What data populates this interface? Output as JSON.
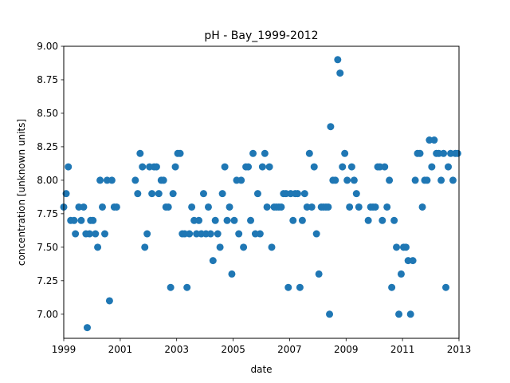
{
  "chart_data": {
    "type": "scatter",
    "title": "pH - Bay_1999-2012",
    "xlabel": "date",
    "ylabel": "concentration [unknown units]",
    "xlim": [
      "1999-01-01",
      "2013-01-01"
    ],
    "ylim": [
      6.82,
      9.0
    ],
    "x_ticks": [
      "1999",
      "2001",
      "2003",
      "2005",
      "2007",
      "2009",
      "2011",
      "2013"
    ],
    "y_ticks": [
      "7.00",
      "7.25",
      "7.50",
      "7.75",
      "8.00",
      "8.25",
      "8.50",
      "8.75",
      "9.00"
    ],
    "grid": false,
    "marker_color": "#1f77b4",
    "points": [
      [
        "1999-01-01",
        7.8
      ],
      [
        "1999-02-01",
        7.9
      ],
      [
        "1999-03-01",
        8.1
      ],
      [
        "1999-04-01",
        7.7
      ],
      [
        "1999-05-15",
        7.7
      ],
      [
        "1999-06-01",
        7.6
      ],
      [
        "1999-07-15",
        7.8
      ],
      [
        "1999-08-15",
        7.7
      ],
      [
        "1999-09-15",
        7.8
      ],
      [
        "1999-10-15",
        7.6
      ],
      [
        "1999-11-01",
        6.9
      ],
      [
        "1999-12-01",
        7.6
      ],
      [
        "1999-12-15",
        7.7
      ],
      [
        "2000-01-15",
        7.7
      ],
      [
        "2000-02-15",
        7.6
      ],
      [
        "2000-03-15",
        7.5
      ],
      [
        "2000-04-15",
        8.0
      ],
      [
        "2000-05-15",
        7.8
      ],
      [
        "2000-06-15",
        7.6
      ],
      [
        "2000-07-15",
        8.0
      ],
      [
        "2000-08-15",
        7.1
      ],
      [
        "2000-09-15",
        8.0
      ],
      [
        "2000-10-15",
        7.8
      ],
      [
        "2000-11-15",
        7.8
      ],
      [
        "2001-07-15",
        8.0
      ],
      [
        "2001-08-15",
        7.9
      ],
      [
        "2001-09-15",
        8.2
      ],
      [
        "2001-10-15",
        8.1
      ],
      [
        "2001-11-15",
        7.5
      ],
      [
        "2001-12-15",
        7.6
      ],
      [
        "2002-01-15",
        8.1
      ],
      [
        "2002-02-15",
        7.9
      ],
      [
        "2002-03-15",
        8.1
      ],
      [
        "2002-04-15",
        8.1
      ],
      [
        "2002-05-15",
        7.9
      ],
      [
        "2002-06-15",
        8.0
      ],
      [
        "2002-07-15",
        8.0
      ],
      [
        "2002-08-15",
        7.8
      ],
      [
        "2002-09-15",
        7.8
      ],
      [
        "2002-10-15",
        7.2
      ],
      [
        "2002-11-15",
        7.9
      ],
      [
        "2002-12-15",
        8.1
      ],
      [
        "2003-01-15",
        8.2
      ],
      [
        "2003-02-15",
        8.2
      ],
      [
        "2003-03-15",
        7.6
      ],
      [
        "2003-04-15",
        7.6
      ],
      [
        "2003-05-15",
        7.2
      ],
      [
        "2003-06-15",
        7.6
      ],
      [
        "2003-07-15",
        7.8
      ],
      [
        "2003-08-15",
        7.7
      ],
      [
        "2003-09-15",
        7.6
      ],
      [
        "2003-10-15",
        7.7
      ],
      [
        "2003-11-15",
        7.6
      ],
      [
        "2003-12-15",
        7.9
      ],
      [
        "2004-01-15",
        7.6
      ],
      [
        "2004-02-15",
        7.8
      ],
      [
        "2004-03-15",
        7.6
      ],
      [
        "2004-04-15",
        7.4
      ],
      [
        "2004-05-15",
        7.7
      ],
      [
        "2004-06-15",
        7.6
      ],
      [
        "2004-07-15",
        7.5
      ],
      [
        "2004-08-15",
        7.9
      ],
      [
        "2004-09-15",
        8.1
      ],
      [
        "2004-10-15",
        7.7
      ],
      [
        "2004-11-15",
        7.8
      ],
      [
        "2004-12-15",
        7.3
      ],
      [
        "2005-01-15",
        7.7
      ],
      [
        "2005-02-15",
        8.0
      ],
      [
        "2005-03-15",
        7.6
      ],
      [
        "2005-04-15",
        8.0
      ],
      [
        "2005-05-15",
        7.5
      ],
      [
        "2005-06-15",
        8.1
      ],
      [
        "2005-07-15",
        8.1
      ],
      [
        "2005-08-15",
        7.7
      ],
      [
        "2005-09-15",
        8.2
      ],
      [
        "2005-10-15",
        7.6
      ],
      [
        "2005-11-15",
        7.9
      ],
      [
        "2005-12-15",
        7.6
      ],
      [
        "2006-01-15",
        8.1
      ],
      [
        "2006-02-15",
        8.2
      ],
      [
        "2006-03-15",
        7.8
      ],
      [
        "2006-04-15",
        8.1
      ],
      [
        "2006-05-15",
        7.5
      ],
      [
        "2006-06-15",
        7.8
      ],
      [
        "2006-07-15",
        7.8
      ],
      [
        "2006-08-15",
        7.8
      ],
      [
        "2006-09-15",
        7.8
      ],
      [
        "2006-10-15",
        7.9
      ],
      [
        "2006-11-15",
        7.9
      ],
      [
        "2006-12-15",
        7.2
      ],
      [
        "2007-01-15",
        7.9
      ],
      [
        "2007-02-15",
        7.7
      ],
      [
        "2007-03-15",
        7.9
      ],
      [
        "2007-04-15",
        7.9
      ],
      [
        "2007-05-15",
        7.2
      ],
      [
        "2007-06-15",
        7.7
      ],
      [
        "2007-07-15",
        7.9
      ],
      [
        "2007-08-15",
        7.8
      ],
      [
        "2007-09-15",
        8.2
      ],
      [
        "2007-10-15",
        7.8
      ],
      [
        "2007-11-15",
        8.1
      ],
      [
        "2007-12-15",
        7.6
      ],
      [
        "2008-01-15",
        7.3
      ],
      [
        "2008-02-15",
        7.8
      ],
      [
        "2008-03-15",
        7.8
      ],
      [
        "2008-04-15",
        7.8
      ],
      [
        "2008-05-15",
        7.8
      ],
      [
        "2008-06-01",
        7.0
      ],
      [
        "2008-06-15",
        8.4
      ],
      [
        "2008-07-15",
        8.0
      ],
      [
        "2008-08-15",
        8.0
      ],
      [
        "2008-09-15",
        8.9
      ],
      [
        "2008-10-15",
        8.8
      ],
      [
        "2008-11-15",
        8.1
      ],
      [
        "2008-12-15",
        8.2
      ],
      [
        "2009-01-15",
        8.0
      ],
      [
        "2009-02-15",
        7.8
      ],
      [
        "2009-03-15",
        8.1
      ],
      [
        "2009-04-15",
        8.0
      ],
      [
        "2009-05-15",
        7.9
      ],
      [
        "2009-06-15",
        7.8
      ],
      [
        "2009-10-15",
        7.7
      ],
      [
        "2009-11-15",
        7.8
      ],
      [
        "2009-12-15",
        7.8
      ],
      [
        "2010-01-15",
        7.8
      ],
      [
        "2010-02-15",
        8.1
      ],
      [
        "2010-03-15",
        8.1
      ],
      [
        "2010-04-15",
        7.7
      ],
      [
        "2010-05-15",
        8.1
      ],
      [
        "2010-06-15",
        7.8
      ],
      [
        "2010-07-15",
        8.0
      ],
      [
        "2010-08-15",
        7.2
      ],
      [
        "2010-09-15",
        7.7
      ],
      [
        "2010-10-15",
        7.5
      ],
      [
        "2010-11-15",
        7.0
      ],
      [
        "2010-12-15",
        7.3
      ],
      [
        "2011-01-15",
        7.5
      ],
      [
        "2011-02-15",
        7.5
      ],
      [
        "2011-03-15",
        7.4
      ],
      [
        "2011-04-15",
        7.0
      ],
      [
        "2011-05-15",
        7.4
      ],
      [
        "2011-06-15",
        8.0
      ],
      [
        "2011-07-15",
        8.2
      ],
      [
        "2011-08-15",
        8.2
      ],
      [
        "2011-09-15",
        7.8
      ],
      [
        "2011-10-15",
        8.0
      ],
      [
        "2011-11-15",
        8.0
      ],
      [
        "2011-12-15",
        8.3
      ],
      [
        "2012-01-15",
        8.1
      ],
      [
        "2012-02-15",
        8.3
      ],
      [
        "2012-03-15",
        8.2
      ],
      [
        "2012-04-15",
        8.2
      ],
      [
        "2012-05-15",
        8.0
      ],
      [
        "2012-06-15",
        8.2
      ],
      [
        "2012-07-15",
        7.2
      ],
      [
        "2012-08-15",
        8.1
      ],
      [
        "2012-09-15",
        8.2
      ],
      [
        "2012-10-15",
        8.0
      ],
      [
        "2012-11-15",
        8.2
      ],
      [
        "2012-12-15",
        8.2
      ]
    ]
  }
}
